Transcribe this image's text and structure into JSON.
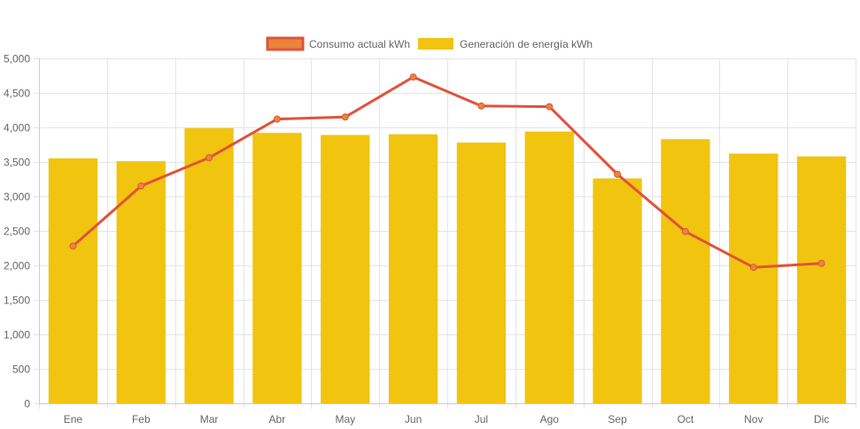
{
  "chart_data": {
    "type": "bar",
    "categories": [
      "Ene",
      "Feb",
      "Mar",
      "Abr",
      "May",
      "Jun",
      "Jul",
      "Ago",
      "Sep",
      "Oct",
      "Nov",
      "Dic"
    ],
    "series": [
      {
        "name": "Consumo actual kWh",
        "type": "line",
        "color": "#e0533a",
        "point_color": "#e8863a",
        "values": [
          2280,
          3150,
          3560,
          4120,
          4150,
          4730,
          4310,
          4300,
          3320,
          2490,
          1970,
          2030
        ]
      },
      {
        "name": "Generación de energía kWh",
        "type": "bar",
        "color": "#f1c40f",
        "values": [
          3550,
          3510,
          3990,
          3920,
          3890,
          3900,
          3780,
          3940,
          3260,
          3830,
          3620,
          3580
        ]
      }
    ],
    "y_ticks": [
      "0",
      "500",
      "1,000",
      "1,500",
      "2,000",
      "2,500",
      "3,000",
      "3,500",
      "4,000",
      "4,500",
      "5,000"
    ],
    "ylim": [
      0,
      5000
    ],
    "grid": true,
    "legend_position": "top-center"
  }
}
